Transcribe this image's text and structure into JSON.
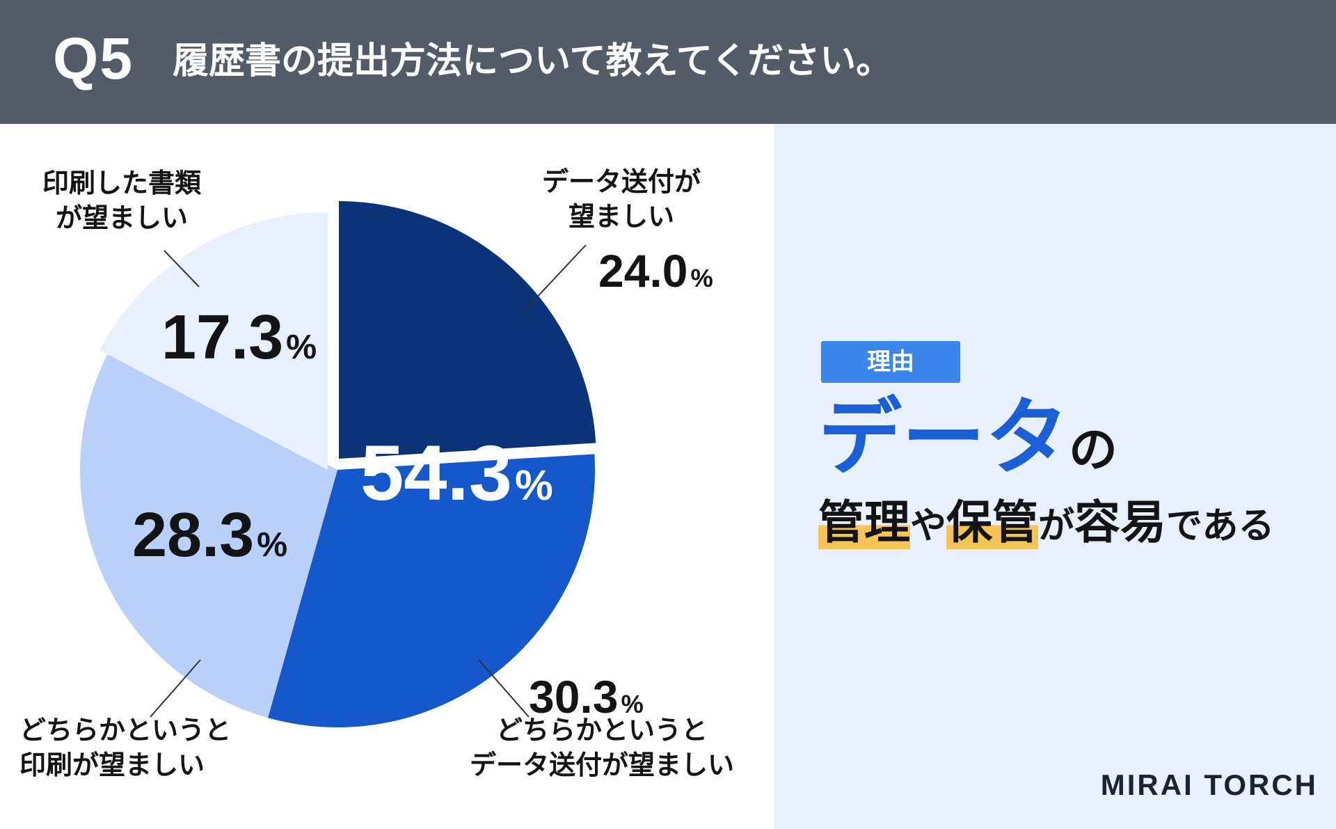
{
  "header": {
    "q_number": "Q5",
    "question": "履歴書の提出方法について教えてください。"
  },
  "chart_data": {
    "type": "pie",
    "total_label": "54.3",
    "slices": [
      {
        "label_line1": "データ送付が",
        "label_line2": "望ましい",
        "value": 24.0,
        "value_text": "24.0",
        "color": "#0a3378"
      },
      {
        "label_line1": "どちらかというと",
        "label_line2": "データ送付が望ましい",
        "value": 30.3,
        "value_text": "30.3",
        "color": "#1558cc"
      },
      {
        "label_line1": "どちらかというと",
        "label_line2": "印刷が望ましい",
        "value": 28.3,
        "value_text": "28.3",
        "color": "#b9d0fa"
      },
      {
        "label_line1": "印刷した書類",
        "label_line2": "が望ましい",
        "value": 17.3,
        "value_text": "17.3",
        "color": "#e8f0fd"
      }
    ],
    "unit": "%"
  },
  "reason": {
    "tag": "理由",
    "headline_blue": "データ",
    "headline_suffix": "の",
    "line2_hl1": "管理",
    "line2_t1": "や",
    "line2_hl2": "保管",
    "line2_t2": "が",
    "line2_t3": "容易",
    "line2_t4": "である"
  },
  "logo": "MIRAI TORCH"
}
